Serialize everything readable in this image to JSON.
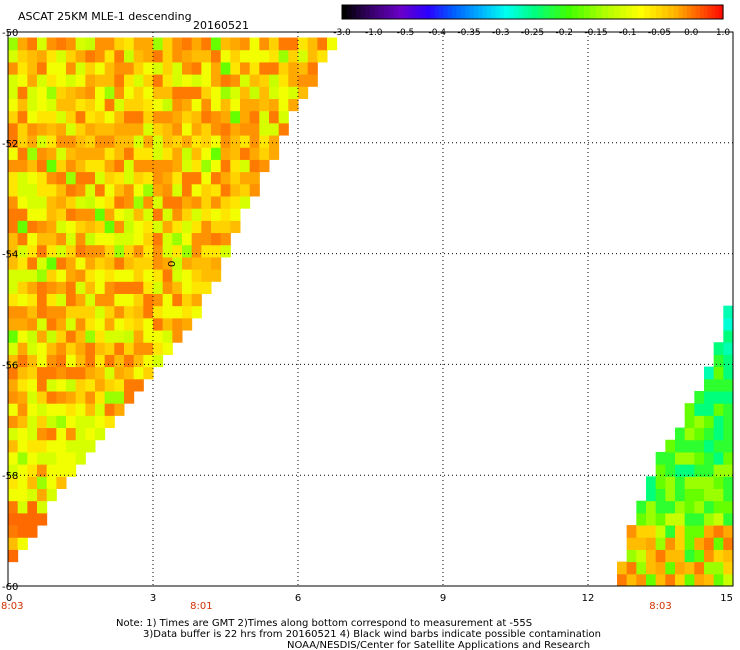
{
  "title": "ASCAT 25KM MLE-1 descending",
  "date": "20160521",
  "colorbar": {
    "labels": [
      "-3.0",
      "-1.0",
      "-0.5",
      "-0.4",
      "-0.35",
      "-0.3",
      "-0.25",
      "-0.2",
      "-0.15",
      "-0.1",
      "-0.05",
      "0.0",
      "1.0"
    ],
    "colors": [
      "#000000",
      "#3a0070",
      "#6a00c8",
      "#2b00ff",
      "#0060ff",
      "#00b0ff",
      "#00ffee",
      "#00ff80",
      "#40ff00",
      "#b0ff00",
      "#ffff00",
      "#ffb000",
      "#ff5000",
      "#ff0000"
    ]
  },
  "notes": {
    "line1": "Note: 1) Times are GMT 2)Times along bottom correspond to measurement at -55S",
    "line2": "3)Data buffer is 22 hrs from 20160521 4) Black wind barbs indicate possible contamination",
    "line3": "NOAA/NESDIS/Center for Satellite Applications and Research"
  },
  "time_labels": [
    {
      "x": 0,
      "text": "8:03"
    },
    {
      "x": 4,
      "text": "8:01"
    },
    {
      "x": 13.5,
      "text": "8:03"
    }
  ],
  "contour_label": "0",
  "chart_data": {
    "type": "heatmap",
    "title": "ASCAT 25KM MLE-1 descending",
    "subtitle": "20160521",
    "x_ticks": [
      0,
      3,
      6,
      9,
      12,
      15
    ],
    "y_ticks": [
      -50,
      -52,
      -54,
      -56,
      -58,
      -60
    ],
    "xlim": [
      0,
      15
    ],
    "ylim": [
      -60,
      -50
    ],
    "grid": "dotted",
    "colorbar_position": "top-right",
    "swaths": [
      {
        "name": "",
        "edge": [
          [
            0,
            -59.6
          ],
          [
            3.3,
            -55.8
          ],
          [
            4.0,
            -55.0
          ],
          [
            4.5,
            -54.0
          ],
          [
            5.4,
            -52.4
          ],
          [
            6.2,
            -51.0
          ],
          [
            7.0,
            -50.0
          ],
          [
            0,
            -50.0
          ]
        ],
        "dominant_range": [
          "-0.1",
          "0.0"
        ],
        "notes": "mostly orange and yellow"
      },
      {
        "name": "",
        "edge": [
          [
            15,
            -54.6
          ],
          [
            14.7,
            -55.6
          ],
          [
            14.2,
            -56.6
          ],
          [
            13.3,
            -58.0
          ],
          [
            12.5,
            -60.0
          ],
          [
            15,
            -60.0
          ]
        ],
        "dominant_range": [
          "-0.3",
          "-0.1"
        ],
        "notes": "mostly green and cyan"
      }
    ]
  }
}
